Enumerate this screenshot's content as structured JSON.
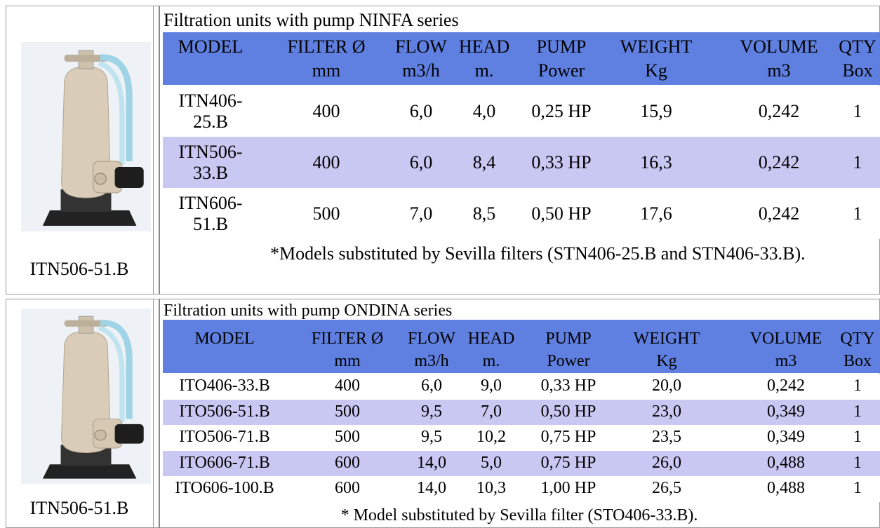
{
  "sections": [
    {
      "title": "Filtration units with pump NINFA series",
      "caption": "ITN506-51.B",
      "header": [
        "MODEL",
        "FILTER Ø",
        "FLOW",
        "HEAD",
        "PUMP",
        "WEIGHT",
        "VOLUME",
        "QTY"
      ],
      "units": [
        "mm",
        "m3/h",
        "m.",
        "Power",
        "Kg",
        "m3",
        "Box"
      ],
      "rows": [
        [
          "ITN406-25.B",
          "400",
          "6,0",
          "4,0",
          "0,25 HP",
          "15,9",
          "0,242",
          "1"
        ],
        [
          "ITN506-33.B",
          "400",
          "6,0",
          "8,4",
          "0,33 HP",
          "16,3",
          "0,242",
          "1"
        ],
        [
          "ITN606-51.B",
          "500",
          "7,0",
          "8,5",
          "0,50 HP",
          "17,6",
          "0,242",
          "1"
        ]
      ],
      "note": "*Models substituted by Sevilla filters (STN406-25.B and STN406-33.B)."
    },
    {
      "title": "Filtration units with pump ONDINA series",
      "caption": "ITN506-51.B",
      "header": [
        "MODEL",
        "FILTER Ø",
        "FLOW",
        "HEAD",
        "PUMP",
        "WEIGHT",
        "VOLUME",
        "QTY"
      ],
      "units": [
        "mm",
        "m3/h",
        "m.",
        "Power",
        "Kg",
        "m3",
        "Box"
      ],
      "rows": [
        [
          "ITO406-33.B",
          "400",
          "6,0",
          "9,0",
          "0,33 HP",
          "20,0",
          "0,242",
          "1"
        ],
        [
          "ITO506-51.B",
          "500",
          "9,5",
          "7,0",
          "0,50 HP",
          "23,0",
          "0,349",
          "1"
        ],
        [
          "ITO506-71.B",
          "500",
          "9,5",
          "10,2",
          "0,75 HP",
          "23,5",
          "0,349",
          "1"
        ],
        [
          "ITO606-71.B",
          "600",
          "14,0",
          "5,0",
          "0,75 HP",
          "26,0",
          "0,488",
          "1"
        ],
        [
          "ITO606-100.B",
          "600",
          "14,0",
          "10,3",
          "1,00 HP",
          "26,5",
          "0,488",
          "1"
        ]
      ],
      "note": "* Model substituted by Sevilla filter (STO406-33.B)."
    }
  ]
}
